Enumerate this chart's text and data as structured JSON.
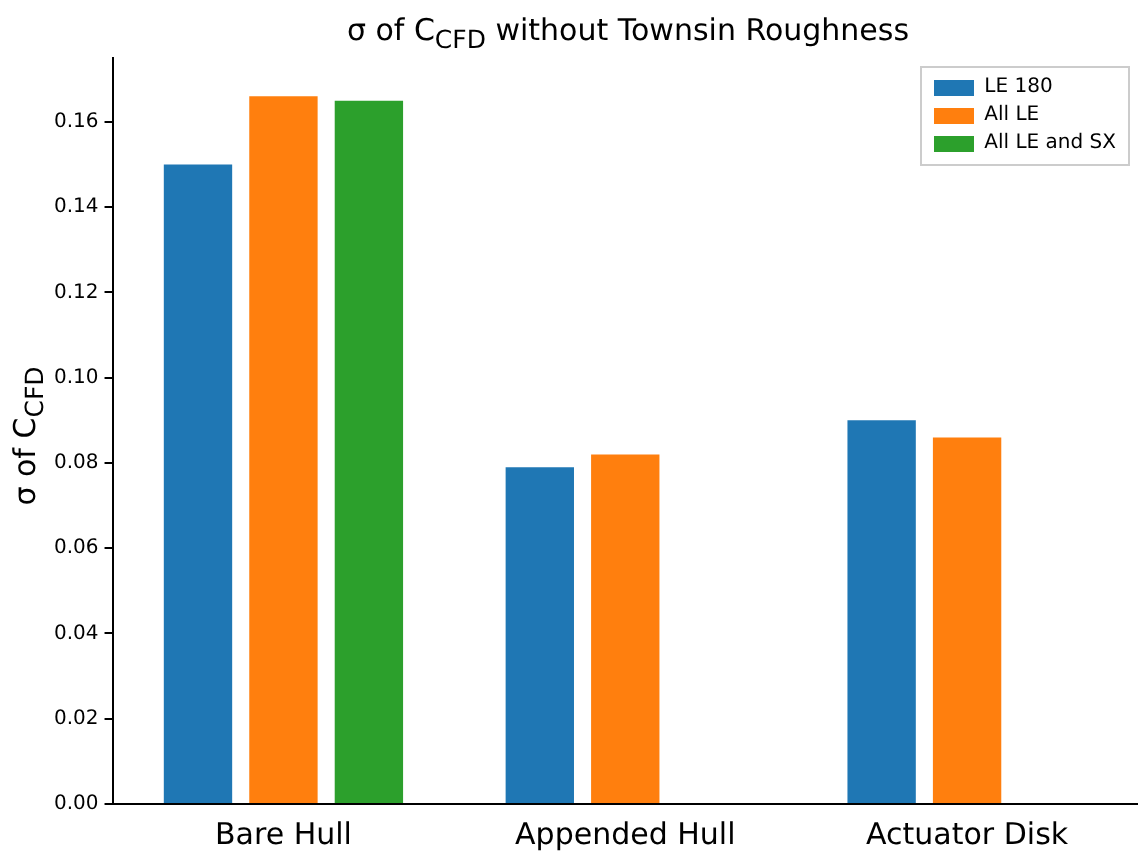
{
  "chart_data": {
    "type": "bar",
    "title": "σ of C$_{CFD}$ without Townsin Roughness",
    "ylabel": "σ of C$_{CFD}$",
    "categories": [
      "Bare Hull",
      "Appended Hull",
      "Actuator Disk"
    ],
    "series": [
      {
        "name": "LE 180",
        "color": "#1f77b4",
        "values": [
          0.15,
          0.079,
          0.09
        ]
      },
      {
        "name": "All LE",
        "color": "#ff7f0e",
        "values": [
          0.166,
          0.082,
          0.086
        ]
      },
      {
        "name": "All LE and SX",
        "color": "#2ca02c",
        "values": [
          0.165,
          null,
          null
        ]
      }
    ],
    "ylim": [
      0,
      0.175
    ],
    "yticks": [
      {
        "value": 0,
        "label": "0.00"
      },
      {
        "value": 0.02,
        "label": "0.02"
      },
      {
        "value": 0.04,
        "label": "0.04"
      },
      {
        "value": 0.06,
        "label": "0.06"
      },
      {
        "value": 0.08,
        "label": "0.08"
      },
      {
        "value": 0.1,
        "label": "0.10"
      },
      {
        "value": 0.12,
        "label": "0.12"
      },
      {
        "value": 0.14,
        "label": "0.14"
      },
      {
        "value": 0.16,
        "label": "0.16"
      }
    ],
    "grid": false,
    "legend": "top right"
  }
}
